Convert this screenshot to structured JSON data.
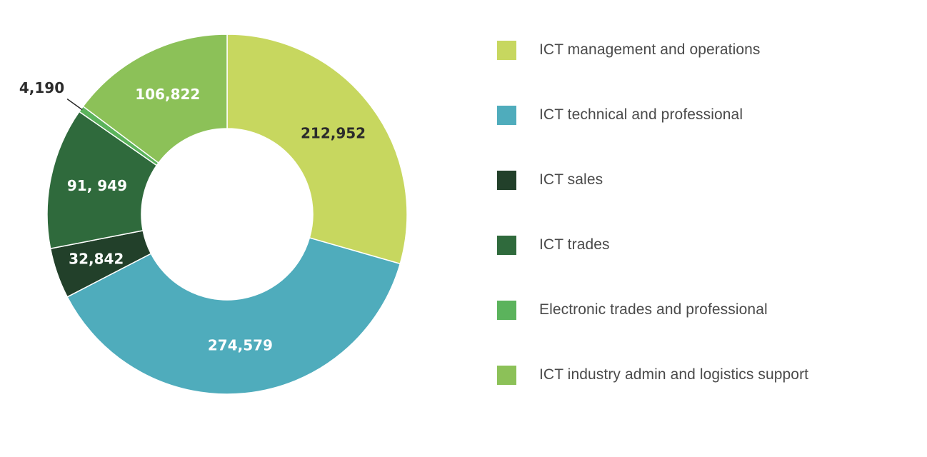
{
  "chart_data": {
    "type": "pie",
    "donut": true,
    "title": "",
    "categories": [
      "ICT management and operations",
      "ICT technical and professional",
      "ICT sales",
      "ICT trades",
      "Electronic trades and professional",
      "ICT industry admin and logistics support"
    ],
    "values": [
      212952,
      274579,
      32842,
      91949,
      4190,
      106822
    ],
    "data_labels": [
      "212,952",
      "274,579",
      "32,842",
      "91, 949",
      "4,190",
      "106,822"
    ],
    "colors": [
      "#c7d75f",
      "#4facbc",
      "#22402a",
      "#2f6a3c",
      "#5bb35c",
      "#8cc158"
    ],
    "label_colors": [
      "#2b2b2b",
      "#ffffff",
      "#ffffff",
      "#ffffff",
      "#2b2b2b",
      "#ffffff"
    ],
    "legend_position": "right"
  }
}
